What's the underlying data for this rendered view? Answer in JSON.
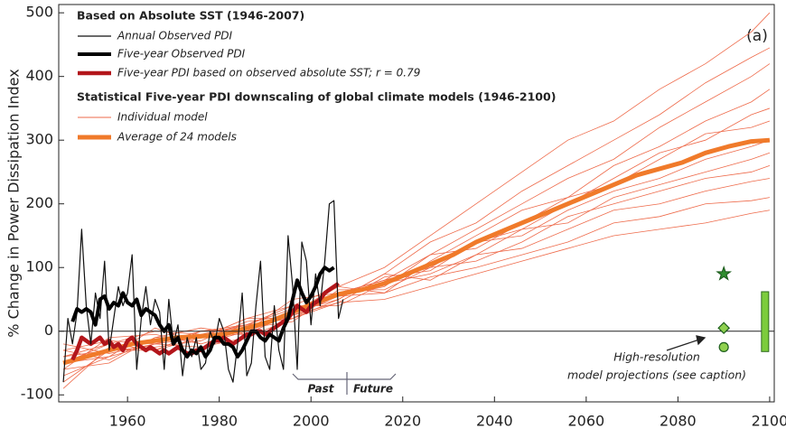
{
  "chart_data": {
    "type": "line",
    "panel_label": "(a)",
    "y_label": "% Change in Power Dissipation Index",
    "xlim": [
      1945,
      2101
    ],
    "ylim": [
      -111,
      513
    ],
    "xticks": [
      1960,
      1980,
      2000,
      2020,
      2040,
      2060,
      2080,
      2100
    ],
    "yticks": [
      -100,
      0,
      100,
      200,
      300,
      400,
      500
    ],
    "hline": 0,
    "legend_headings": [
      "Based on Absolute SST (1946-2007)",
      "Statistical Five-year PDI downscaling of global climate models (1946-2100)"
    ],
    "series": [
      {
        "name": "Annual Observed PDI",
        "color": "#111111",
        "width": 1.2,
        "x": [
          1946,
          1947,
          1948,
          1949,
          1950,
          1951,
          1952,
          1953,
          1954,
          1955,
          1956,
          1957,
          1958,
          1959,
          1960,
          1961,
          1962,
          1963,
          1964,
          1965,
          1966,
          1967,
          1968,
          1969,
          1970,
          1971,
          1972,
          1973,
          1974,
          1975,
          1976,
          1977,
          1978,
          1979,
          1980,
          1981,
          1982,
          1983,
          1984,
          1985,
          1986,
          1987,
          1988,
          1989,
          1990,
          1991,
          1992,
          1993,
          1994,
          1995,
          1996,
          1997,
          1998,
          1999,
          2000,
          2001,
          2002,
          2003,
          2004,
          2005,
          2006,
          2007
        ],
        "values": [
          -80,
          20,
          -20,
          30,
          160,
          40,
          -20,
          60,
          20,
          110,
          -30,
          20,
          70,
          40,
          60,
          120,
          -60,
          20,
          70,
          10,
          50,
          30,
          -60,
          50,
          -20,
          10,
          -70,
          -10,
          -40,
          -10,
          -60,
          -50,
          0,
          -20,
          20,
          0,
          -60,
          -80,
          -20,
          60,
          -70,
          -50,
          40,
          110,
          -40,
          -60,
          40,
          -30,
          -60,
          150,
          70,
          -60,
          140,
          110,
          10,
          90,
          40,
          110,
          200,
          205,
          20,
          50
        ]
      },
      {
        "name": "Five-year Observed PDI",
        "color": "#000000",
        "width": 4,
        "x": [
          1948,
          1949,
          1950,
          1951,
          1952,
          1953,
          1954,
          1955,
          1956,
          1957,
          1958,
          1959,
          1960,
          1961,
          1962,
          1963,
          1964,
          1965,
          1966,
          1967,
          1968,
          1969,
          1970,
          1971,
          1972,
          1973,
          1974,
          1975,
          1976,
          1977,
          1978,
          1979,
          1980,
          1981,
          1982,
          1983,
          1984,
          1985,
          1986,
          1987,
          1988,
          1989,
          1990,
          1991,
          1992,
          1993,
          1994,
          1995,
          1996,
          1997,
          1998,
          1999,
          2000,
          2001,
          2002,
          2003,
          2004,
          2005
        ],
        "values": [
          15,
          35,
          30,
          35,
          30,
          10,
          50,
          55,
          35,
          45,
          40,
          60,
          45,
          40,
          50,
          25,
          35,
          30,
          25,
          10,
          0,
          10,
          -20,
          -10,
          -30,
          -40,
          -30,
          -35,
          -25,
          -40,
          -30,
          -10,
          -10,
          -20,
          -20,
          -25,
          -40,
          -30,
          -15,
          0,
          0,
          -10,
          -15,
          -5,
          -10,
          -15,
          5,
          20,
          50,
          80,
          60,
          45,
          55,
          70,
          90,
          100,
          95,
          100
        ]
      },
      {
        "name": "Five-year PDI based on observed absolute SST; r = 0.79",
        "color": "#b3161b",
        "width": 4.5,
        "x": [
          1948,
          1949,
          1950,
          1951,
          1952,
          1953,
          1954,
          1955,
          1956,
          1957,
          1958,
          1959,
          1960,
          1961,
          1962,
          1963,
          1964,
          1965,
          1966,
          1967,
          1968,
          1969,
          1970,
          1971,
          1972,
          1973,
          1974,
          1975,
          1976,
          1977,
          1978,
          1979,
          1980,
          1981,
          1982,
          1983,
          1984,
          1985,
          1986,
          1987,
          1988,
          1989,
          1990,
          1991,
          1992,
          1993,
          1994,
          1995,
          1996,
          1997,
          1998,
          1999,
          2000,
          2001,
          2002,
          2003,
          2004,
          2005,
          2006
        ],
        "values": [
          -45,
          -30,
          -10,
          -15,
          -20,
          -15,
          -10,
          -20,
          -15,
          -25,
          -20,
          -30,
          -15,
          -10,
          -20,
          -25,
          -30,
          -25,
          -30,
          -35,
          -30,
          -35,
          -30,
          -25,
          -30,
          -35,
          -35,
          -30,
          -30,
          -25,
          -20,
          -15,
          -15,
          -10,
          -15,
          -20,
          -15,
          -10,
          -5,
          -5,
          0,
          0,
          -5,
          0,
          5,
          10,
          15,
          20,
          30,
          40,
          35,
          30,
          40,
          45,
          50,
          60,
          65,
          70,
          75
        ]
      },
      {
        "name": "Individual model",
        "color": "#ee6a4a",
        "width": 0.8,
        "x": [
          1946,
          1956,
          1966,
          1976,
          1986,
          1996,
          2006,
          2016,
          2026,
          2036,
          2046,
          2056,
          2066,
          2076,
          2086,
          2096,
          2100
        ],
        "runs": [
          [
            -70,
            -40,
            -20,
            0,
            10,
            40,
            70,
            100,
            150,
            200,
            250,
            300,
            330,
            380,
            420,
            470,
            500
          ],
          [
            -40,
            -20,
            -30,
            -10,
            20,
            20,
            50,
            90,
            140,
            170,
            220,
            260,
            300,
            340,
            390,
            430,
            445
          ],
          [
            -60,
            -10,
            -5,
            -20,
            0,
            50,
            60,
            80,
            120,
            160,
            200,
            240,
            270,
            320,
            360,
            400,
            420
          ],
          [
            -30,
            -45,
            -10,
            5,
            -5,
            30,
            70,
            60,
            110,
            150,
            190,
            210,
            260,
            290,
            330,
            360,
            380
          ],
          [
            -80,
            -30,
            -25,
            -15,
            15,
            25,
            45,
            85,
            95,
            140,
            160,
            200,
            240,
            280,
            300,
            340,
            350
          ],
          [
            -50,
            -20,
            0,
            -5,
            10,
            35,
            55,
            70,
            120,
            130,
            170,
            210,
            230,
            270,
            310,
            320,
            330
          ],
          [
            -20,
            -35,
            -20,
            -25,
            -10,
            20,
            60,
            80,
            100,
            140,
            150,
            190,
            220,
            240,
            270,
            290,
            300
          ],
          [
            -60,
            -50,
            -10,
            -10,
            20,
            40,
            40,
            75,
            90,
            120,
            160,
            170,
            210,
            230,
            250,
            270,
            280
          ],
          [
            -40,
            -30,
            -30,
            0,
            5,
            15,
            65,
            65,
            100,
            110,
            140,
            180,
            200,
            220,
            240,
            250,
            260
          ],
          [
            -90,
            -25,
            -15,
            -5,
            -5,
            30,
            50,
            90,
            80,
            120,
            130,
            160,
            190,
            200,
            220,
            235,
            240
          ],
          [
            -50,
            -40,
            5,
            -20,
            0,
            25,
            55,
            60,
            85,
            100,
            120,
            140,
            170,
            180,
            200,
            205,
            210
          ],
          [
            -30,
            -15,
            -20,
            -10,
            10,
            20,
            45,
            50,
            70,
            90,
            110,
            130,
            150,
            160,
            170,
            185,
            190
          ]
        ]
      },
      {
        "name": "Average of 24 models",
        "color": "#f07a2a",
        "width": 5,
        "x": [
          1946,
          1951,
          1956,
          1961,
          1966,
          1971,
          1976,
          1981,
          1986,
          1991,
          1996,
          2001,
          2006,
          2011,
          2016,
          2021,
          2026,
          2031,
          2036,
          2041,
          2046,
          2051,
          2056,
          2061,
          2066,
          2071,
          2076,
          2081,
          2086,
          2091,
          2096,
          2100
        ],
        "values": [
          -50,
          -40,
          -30,
          -20,
          -15,
          -10,
          -8,
          -5,
          5,
          15,
          30,
          45,
          58,
          65,
          75,
          90,
          105,
          120,
          140,
          155,
          170,
          185,
          200,
          215,
          230,
          245,
          255,
          265,
          280,
          290,
          298,
          300
        ]
      }
    ],
    "markers": [
      {
        "shape": "star",
        "x": 2090,
        "value": 90,
        "color": "#2f8f2f"
      },
      {
        "shape": "diamond",
        "x": 2090,
        "value": 5,
        "color": "#8fd14f"
      },
      {
        "shape": "circle",
        "x": 2090,
        "value": -25,
        "color": "#8fd14f"
      }
    ],
    "range_bar": {
      "x": 2099,
      "values": [
        -32,
        62
      ],
      "color": "#7ccc3c"
    },
    "annotation": [
      "High-resolution",
      "model projections (see caption)"
    ],
    "period_labels": [
      "Past",
      "Future"
    ]
  }
}
